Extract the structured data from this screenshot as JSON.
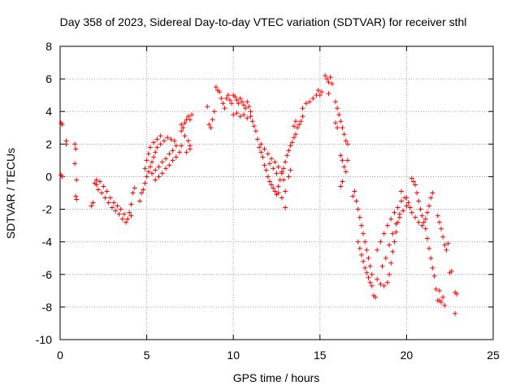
{
  "chart_data": {
    "type": "scatter",
    "title": "Day 358 of 2023, Sidereal Day-to-day VTEC variation (SDTVAR) for receiver sthl",
    "xlabel": "GPS time / hours",
    "ylabel": "SDTVAR / TECUs",
    "xlim": [
      0,
      25
    ],
    "ylim": [
      -10,
      8
    ],
    "xticks": [
      0,
      5,
      10,
      15,
      20,
      25
    ],
    "yticks": [
      -10,
      -8,
      -6,
      -4,
      -2,
      0,
      2,
      4,
      6,
      8
    ],
    "grid": true,
    "marker": "+",
    "color": "#ff0000",
    "series": [
      {
        "name": "SDTVAR",
        "points": [
          [
            0.05,
            3.3
          ],
          [
            0.12,
            3.2
          ],
          [
            0.05,
            0.1
          ],
          [
            0.12,
            0.0
          ],
          [
            0.35,
            2.2
          ],
          [
            0.35,
            2.0
          ],
          [
            0.85,
            2.0
          ],
          [
            0.9,
            1.7
          ],
          [
            0.85,
            0.8
          ],
          [
            0.95,
            -0.2
          ],
          [
            0.9,
            -1.2
          ],
          [
            0.95,
            -1.4
          ],
          [
            1.8,
            -1.8
          ],
          [
            1.9,
            -1.6
          ],
          [
            2.0,
            -0.4
          ],
          [
            2.1,
            -0.5
          ],
          [
            2.2,
            -0.8
          ],
          [
            2.4,
            -1.0
          ],
          [
            2.6,
            -1.3
          ],
          [
            2.8,
            -1.6
          ],
          [
            3.0,
            -1.9
          ],
          [
            3.2,
            -2.1
          ],
          [
            3.4,
            -2.3
          ],
          [
            3.6,
            -2.6
          ],
          [
            3.8,
            -2.8
          ],
          [
            2.1,
            -0.2
          ],
          [
            2.3,
            -0.3
          ],
          [
            2.5,
            -0.6
          ],
          [
            2.7,
            -0.9
          ],
          [
            2.9,
            -1.3
          ],
          [
            3.1,
            -1.6
          ],
          [
            3.3,
            -1.8
          ],
          [
            3.5,
            -2.0
          ],
          [
            3.7,
            -2.3
          ],
          [
            3.9,
            -2.6
          ],
          [
            4.0,
            -2.2
          ],
          [
            4.1,
            -1.7
          ],
          [
            4.2,
            -1.0
          ],
          [
            4.3,
            -0.7
          ],
          [
            4.1,
            -2.4
          ],
          [
            4.6,
            -1.5
          ],
          [
            4.7,
            -1.0
          ],
          [
            4.8,
            -0.8
          ],
          [
            4.9,
            -0.4
          ],
          [
            5.0,
            0.0
          ],
          [
            5.1,
            0.3
          ],
          [
            5.2,
            0.6
          ],
          [
            5.3,
            0.9
          ],
          [
            5.4,
            1.2
          ],
          [
            5.5,
            1.5
          ],
          [
            5.6,
            1.8
          ],
          [
            5.8,
            2.0
          ],
          [
            6.0,
            2.2
          ],
          [
            6.2,
            2.4
          ],
          [
            6.4,
            2.3
          ],
          [
            6.6,
            2.2
          ],
          [
            4.9,
            0.5
          ],
          [
            5.0,
            1.0
          ],
          [
            5.1,
            1.4
          ],
          [
            5.2,
            1.8
          ],
          [
            5.4,
            2.1
          ],
          [
            5.6,
            2.3
          ],
          [
            5.8,
            2.5
          ],
          [
            5.3,
            0.2
          ],
          [
            5.5,
            0.4
          ],
          [
            5.7,
            0.6
          ],
          [
            5.9,
            0.9
          ],
          [
            6.1,
            1.1
          ],
          [
            6.3,
            1.4
          ],
          [
            6.5,
            1.6
          ],
          [
            6.7,
            1.9
          ],
          [
            5.5,
            -0.2
          ],
          [
            5.7,
            0.0
          ],
          [
            5.9,
            0.2
          ],
          [
            6.1,
            0.5
          ],
          [
            6.3,
            0.7
          ],
          [
            6.5,
            1.0
          ],
          [
            6.7,
            1.2
          ],
          [
            6.9,
            1.5
          ],
          [
            7.0,
            1.9
          ],
          [
            7.0,
            2.8
          ],
          [
            7.1,
            3.0
          ],
          [
            7.2,
            3.3
          ],
          [
            7.3,
            3.5
          ],
          [
            7.4,
            3.7
          ],
          [
            7.5,
            3.5
          ],
          [
            7.2,
            2.5
          ],
          [
            7.4,
            2.2
          ],
          [
            7.5,
            1.9
          ],
          [
            7.3,
            1.5
          ],
          [
            7.5,
            1.7
          ],
          [
            7.6,
            3.8
          ],
          [
            7.0,
            3.2
          ],
          [
            8.5,
            4.3
          ],
          [
            8.6,
            3.2
          ],
          [
            8.7,
            3.0
          ],
          [
            8.8,
            3.5
          ],
          [
            8.9,
            4.0
          ],
          [
            9.0,
            5.5
          ],
          [
            9.1,
            5.3
          ],
          [
            9.2,
            5.2
          ],
          [
            9.3,
            4.8
          ],
          [
            9.4,
            4.5
          ],
          [
            9.5,
            4.2
          ],
          [
            9.6,
            4.8
          ],
          [
            9.7,
            5.0
          ],
          [
            9.8,
            4.7
          ],
          [
            9.9,
            4.5
          ],
          [
            10.0,
            5.0
          ],
          [
            10.1,
            4.9
          ],
          [
            10.2,
            4.7
          ],
          [
            10.3,
            4.5
          ],
          [
            10.4,
            4.8
          ],
          [
            10.5,
            4.6
          ],
          [
            10.6,
            4.4
          ],
          [
            10.7,
            4.2
          ],
          [
            10.8,
            4.6
          ],
          [
            10.9,
            4.3
          ],
          [
            11.0,
            4.0
          ],
          [
            10.0,
            3.8
          ],
          [
            10.2,
            3.9
          ],
          [
            10.4,
            3.7
          ],
          [
            10.6,
            3.8
          ],
          [
            10.8,
            3.6
          ],
          [
            11.0,
            3.7
          ],
          [
            11.1,
            3.4
          ],
          [
            11.2,
            3.1
          ],
          [
            11.3,
            2.8
          ],
          [
            11.4,
            2.3
          ],
          [
            11.5,
            1.8
          ],
          [
            11.6,
            1.5
          ],
          [
            11.7,
            1.2
          ],
          [
            11.8,
            0.7
          ],
          [
            11.9,
            0.4
          ],
          [
            12.0,
            0.0
          ],
          [
            12.1,
            -0.3
          ],
          [
            12.2,
            -0.5
          ],
          [
            12.3,
            -0.7
          ],
          [
            12.4,
            -0.9
          ],
          [
            12.5,
            -1.1
          ],
          [
            12.6,
            -0.6
          ],
          [
            12.7,
            -0.2
          ],
          [
            12.8,
            0.2
          ],
          [
            11.6,
            2.0
          ],
          [
            11.8,
            1.7
          ],
          [
            12.0,
            1.4
          ],
          [
            12.2,
            1.1
          ],
          [
            12.4,
            0.9
          ],
          [
            12.6,
            0.6
          ],
          [
            12.8,
            0.3
          ],
          [
            12.9,
            -0.2
          ],
          [
            13.0,
            -0.9
          ],
          [
            12.8,
            -1.3
          ],
          [
            12.6,
            -1.0
          ],
          [
            12.9,
            0.5
          ],
          [
            13.0,
            0.9
          ],
          [
            13.1,
            1.3
          ],
          [
            13.2,
            1.6
          ],
          [
            13.3,
            1.9
          ],
          [
            13.4,
            2.1
          ],
          [
            13.5,
            2.4
          ],
          [
            13.6,
            2.6
          ],
          [
            13.7,
            3.0
          ],
          [
            13.8,
            3.2
          ],
          [
            13.9,
            3.4
          ],
          [
            14.0,
            3.7
          ],
          [
            13.2,
            0.0
          ],
          [
            13.3,
            0.4
          ],
          [
            12.5,
            0.2
          ],
          [
            12.3,
            0.5
          ],
          [
            12.1,
            0.8
          ],
          [
            13.0,
            -1.9
          ],
          [
            13.5,
            3.1
          ],
          [
            13.6,
            3.4
          ],
          [
            14.0,
            4.2
          ],
          [
            14.2,
            4.5
          ],
          [
            14.4,
            4.6
          ],
          [
            14.6,
            4.8
          ],
          [
            14.8,
            5.0
          ],
          [
            14.9,
            5.3
          ],
          [
            15.0,
            5.0
          ],
          [
            15.1,
            5.2
          ],
          [
            15.3,
            6.2
          ],
          [
            15.4,
            6.0
          ],
          [
            15.5,
            5.8
          ],
          [
            15.6,
            6.1
          ],
          [
            15.7,
            5.7
          ],
          [
            15.5,
            5.1
          ],
          [
            15.9,
            4.6
          ],
          [
            16.0,
            4.2
          ],
          [
            16.1,
            3.8
          ],
          [
            16.2,
            3.4
          ],
          [
            16.3,
            3.0
          ],
          [
            16.4,
            2.6
          ],
          [
            16.5,
            2.2
          ],
          [
            16.6,
            2.0
          ],
          [
            16.0,
            3.0
          ],
          [
            15.9,
            3.3
          ],
          [
            16.2,
            1.3
          ],
          [
            16.3,
            1.0
          ],
          [
            16.4,
            0.6
          ],
          [
            16.5,
            0.3
          ],
          [
            16.6,
            1.0
          ],
          [
            16.3,
            -0.3
          ],
          [
            16.2,
            -0.6
          ],
          [
            16.9,
            -1.2
          ],
          [
            17.0,
            -0.9
          ],
          [
            17.1,
            -1.5
          ],
          [
            17.2,
            -2.0
          ],
          [
            17.3,
            -2.5
          ],
          [
            17.4,
            -3.0
          ],
          [
            17.5,
            -3.5
          ],
          [
            17.6,
            -4.0
          ],
          [
            17.7,
            -4.5
          ],
          [
            17.8,
            -5.0
          ],
          [
            17.9,
            -5.5
          ],
          [
            18.0,
            -6.0
          ],
          [
            17.2,
            -4.0
          ],
          [
            17.3,
            -4.4
          ],
          [
            17.4,
            -4.8
          ],
          [
            17.5,
            -5.2
          ],
          [
            17.6,
            -5.6
          ],
          [
            17.7,
            -5.9
          ],
          [
            17.8,
            -6.2
          ],
          [
            17.9,
            -6.5
          ],
          [
            18.0,
            -6.7
          ],
          [
            18.1,
            -7.3
          ],
          [
            18.2,
            -7.4
          ],
          [
            18.3,
            -6.3
          ],
          [
            18.5,
            -6.6
          ],
          [
            18.7,
            -6.7
          ],
          [
            18.9,
            -6.5
          ],
          [
            19.0,
            -6.0
          ],
          [
            19.1,
            -5.3
          ],
          [
            19.2,
            -4.6
          ],
          [
            19.3,
            -4.0
          ],
          [
            19.4,
            -3.4
          ],
          [
            19.5,
            -2.8
          ],
          [
            19.6,
            -2.3
          ],
          [
            18.6,
            -5.5
          ],
          [
            18.8,
            -5.0
          ],
          [
            19.0,
            -4.2
          ],
          [
            19.2,
            -3.5
          ],
          [
            19.4,
            -2.9
          ],
          [
            19.6,
            -2.5
          ],
          [
            19.8,
            -2.1
          ],
          [
            20.0,
            -1.8
          ],
          [
            18.3,
            -4.5
          ],
          [
            18.5,
            -4.0
          ],
          [
            18.7,
            -3.5
          ],
          [
            18.9,
            -3.0
          ],
          [
            19.1,
            -2.6
          ],
          [
            19.3,
            -2.2
          ],
          [
            19.5,
            -1.9
          ],
          [
            19.7,
            -1.5
          ],
          [
            19.9,
            -1.3
          ],
          [
            19.7,
            -0.9
          ],
          [
            20.0,
            -1.3
          ],
          [
            20.1,
            -1.6
          ],
          [
            20.2,
            -1.9
          ],
          [
            20.3,
            -0.1
          ],
          [
            20.4,
            -0.3
          ],
          [
            20.5,
            -0.5
          ],
          [
            20.6,
            -1.0
          ],
          [
            20.7,
            -1.5
          ],
          [
            20.8,
            -2.0
          ],
          [
            20.9,
            -2.4
          ],
          [
            21.0,
            -2.8
          ],
          [
            20.3,
            -2.2
          ],
          [
            20.5,
            -2.5
          ],
          [
            20.7,
            -2.8
          ],
          [
            20.9,
            -3.0
          ],
          [
            21.1,
            -2.6
          ],
          [
            21.2,
            -2.2
          ],
          [
            21.3,
            -1.8
          ],
          [
            21.4,
            -1.3
          ],
          [
            21.5,
            -1.0
          ],
          [
            21.1,
            -3.2
          ],
          [
            21.2,
            -3.8
          ],
          [
            21.3,
            -4.4
          ],
          [
            21.4,
            -5.0
          ],
          [
            21.5,
            -5.6
          ],
          [
            21.6,
            -6.1
          ],
          [
            21.7,
            -6.9
          ],
          [
            21.8,
            -7.6
          ],
          [
            21.9,
            -7.6
          ],
          [
            22.0,
            -7.7
          ],
          [
            22.1,
            -7.4
          ],
          [
            22.2,
            -7.9
          ],
          [
            21.9,
            -7.0
          ],
          [
            21.8,
            -2.4
          ],
          [
            21.9,
            -2.8
          ],
          [
            22.0,
            -3.2
          ],
          [
            22.1,
            -3.7
          ],
          [
            22.2,
            -4.2
          ],
          [
            22.3,
            -4.5
          ],
          [
            22.4,
            -4.1
          ],
          [
            22.5,
            -5.9
          ],
          [
            22.6,
            -5.8
          ],
          [
            22.8,
            -7.1
          ],
          [
            22.9,
            -7.2
          ],
          [
            22.8,
            -8.4
          ]
        ]
      }
    ]
  }
}
